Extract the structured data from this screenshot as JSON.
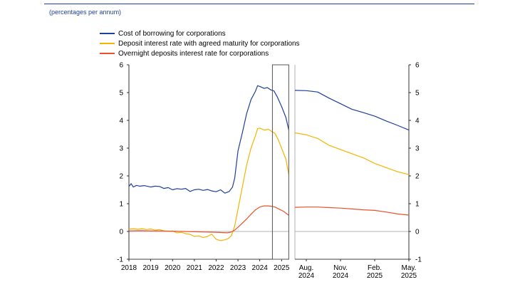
{
  "header": {
    "units": "(percentages per annum)"
  },
  "chart_data": [
    {
      "type": "line",
      "panel": "full period",
      "x_ticks": [
        "2018",
        "2019",
        "2020",
        "2021",
        "2022",
        "2023",
        "2024",
        "2025"
      ],
      "y_ticks": [
        "-1",
        "0",
        "1",
        "2",
        "3",
        "4",
        "5",
        "6"
      ],
      "ylim": [
        -1,
        6
      ],
      "xlim": [
        2018.0,
        2025.35
      ],
      "grid": false,
      "legend_position": "top-left",
      "highlight_window": [
        2024.58,
        2025.33
      ],
      "series": [
        {
          "name": "Cost of borrowing for corporations",
          "color": "#1f3f9c",
          "x": [
            2018.0,
            2018.1,
            2018.2,
            2018.35,
            2018.5,
            2018.7,
            2019.0,
            2019.2,
            2019.4,
            2019.6,
            2019.8,
            2020.0,
            2020.2,
            2020.4,
            2020.6,
            2020.8,
            2021.0,
            2021.2,
            2021.4,
            2021.6,
            2021.8,
            2022.0,
            2022.2,
            2022.4,
            2022.6,
            2022.75,
            2022.85,
            2023.0,
            2023.2,
            2023.4,
            2023.6,
            2023.8,
            2023.9,
            2024.0,
            2024.2,
            2024.35,
            2024.5,
            2024.65,
            2024.8,
            2025.0,
            2025.2,
            2025.33
          ],
          "values": [
            1.62,
            1.72,
            1.6,
            1.66,
            1.63,
            1.65,
            1.6,
            1.63,
            1.62,
            1.55,
            1.58,
            1.5,
            1.54,
            1.52,
            1.55,
            1.44,
            1.5,
            1.52,
            1.48,
            1.51,
            1.46,
            1.43,
            1.5,
            1.38,
            1.44,
            1.6,
            1.92,
            2.9,
            3.55,
            4.25,
            4.75,
            5.05,
            5.25,
            5.22,
            5.15,
            5.18,
            5.1,
            5.06,
            4.85,
            4.5,
            4.1,
            3.65
          ]
        },
        {
          "name": "Deposit interest rate with agreed maturity for corporations",
          "color": "#f5b400",
          "x": [
            2018.0,
            2018.2,
            2018.4,
            2018.6,
            2018.8,
            2019.0,
            2019.2,
            2019.4,
            2019.6,
            2019.8,
            2020.0,
            2020.2,
            2020.4,
            2020.6,
            2020.8,
            2021.0,
            2021.2,
            2021.4,
            2021.6,
            2021.8,
            2022.0,
            2022.2,
            2022.4,
            2022.55,
            2022.7,
            2022.85,
            2023.0,
            2023.2,
            2023.4,
            2023.6,
            2023.8,
            2023.9,
            2024.0,
            2024.2,
            2024.4,
            2024.55,
            2024.7,
            2024.85,
            2025.0,
            2025.2,
            2025.33
          ],
          "values": [
            0.08,
            0.1,
            0.08,
            0.1,
            0.07,
            0.09,
            0.05,
            0.07,
            0.02,
            0.0,
            0.02,
            -0.05,
            -0.03,
            -0.08,
            -0.1,
            -0.18,
            -0.16,
            -0.22,
            -0.18,
            -0.1,
            -0.28,
            -0.33,
            -0.3,
            -0.26,
            -0.15,
            0.2,
            0.8,
            1.6,
            2.4,
            3.0,
            3.45,
            3.7,
            3.72,
            3.65,
            3.68,
            3.6,
            3.53,
            3.3,
            3.0,
            2.6,
            2.05
          ]
        },
        {
          "name": "Overnight deposits interest rate for corporations",
          "color": "#e8522c",
          "x": [
            2018.0,
            2018.5,
            2019.0,
            2019.5,
            2020.0,
            2020.5,
            2021.0,
            2021.5,
            2022.0,
            2022.3,
            2022.5,
            2022.7,
            2022.85,
            2023.0,
            2023.2,
            2023.4,
            2023.6,
            2023.8,
            2024.0,
            2024.2,
            2024.4,
            2024.58,
            2024.7,
            2024.9,
            2025.1,
            2025.33
          ],
          "values": [
            0.02,
            0.03,
            0.02,
            0.02,
            0.01,
            0.0,
            -0.01,
            -0.02,
            -0.03,
            -0.04,
            -0.05,
            -0.02,
            0.05,
            0.15,
            0.3,
            0.45,
            0.62,
            0.78,
            0.88,
            0.92,
            0.92,
            0.9,
            0.88,
            0.8,
            0.72,
            0.58
          ]
        }
      ]
    },
    {
      "type": "line",
      "panel": "zoom",
      "x_ticks": [
        "Aug.\n2024",
        "Nov.\n2024",
        "Feb.\n2025",
        "May.\n2025"
      ],
      "y_ticks": [
        "-1",
        "0",
        "1",
        "2",
        "3",
        "4",
        "5",
        "6"
      ],
      "ylim": [
        -1,
        6
      ],
      "xlim": [
        "2024-07",
        "2025-05"
      ],
      "grid": false,
      "series": [
        {
          "name": "Cost of borrowing for corporations",
          "color": "#1f3f9c",
          "x": [
            "2024-07",
            "2024-08",
            "2024-09",
            "2024-10",
            "2024-11",
            "2024-12",
            "2025-01",
            "2025-02",
            "2025-03",
            "2025-04",
            "2025-05"
          ],
          "values": [
            5.08,
            5.07,
            5.02,
            4.8,
            4.6,
            4.4,
            4.28,
            4.15,
            3.98,
            3.82,
            3.65
          ]
        },
        {
          "name": "Deposit interest rate with agreed maturity for corporations",
          "color": "#f5b400",
          "x": [
            "2024-07",
            "2024-08",
            "2024-09",
            "2024-10",
            "2024-11",
            "2024-12",
            "2025-01",
            "2025-02",
            "2025-03",
            "2025-04",
            "2025-05"
          ],
          "values": [
            3.55,
            3.48,
            3.35,
            3.1,
            2.95,
            2.8,
            2.65,
            2.45,
            2.3,
            2.15,
            2.05
          ]
        },
        {
          "name": "Overnight deposits interest rate for corporations",
          "color": "#e8522c",
          "x": [
            "2024-07",
            "2024-08",
            "2024-09",
            "2024-10",
            "2024-11",
            "2024-12",
            "2025-01",
            "2025-02",
            "2025-03",
            "2025-04",
            "2025-05"
          ],
          "values": [
            0.87,
            0.88,
            0.88,
            0.86,
            0.84,
            0.81,
            0.78,
            0.76,
            0.7,
            0.63,
            0.59
          ]
        }
      ]
    }
  ],
  "colors": {
    "axis": "#000000",
    "zero_line": "#b3b3b3",
    "window_box": "#555555",
    "header_rule": "#1f3f9c"
  }
}
